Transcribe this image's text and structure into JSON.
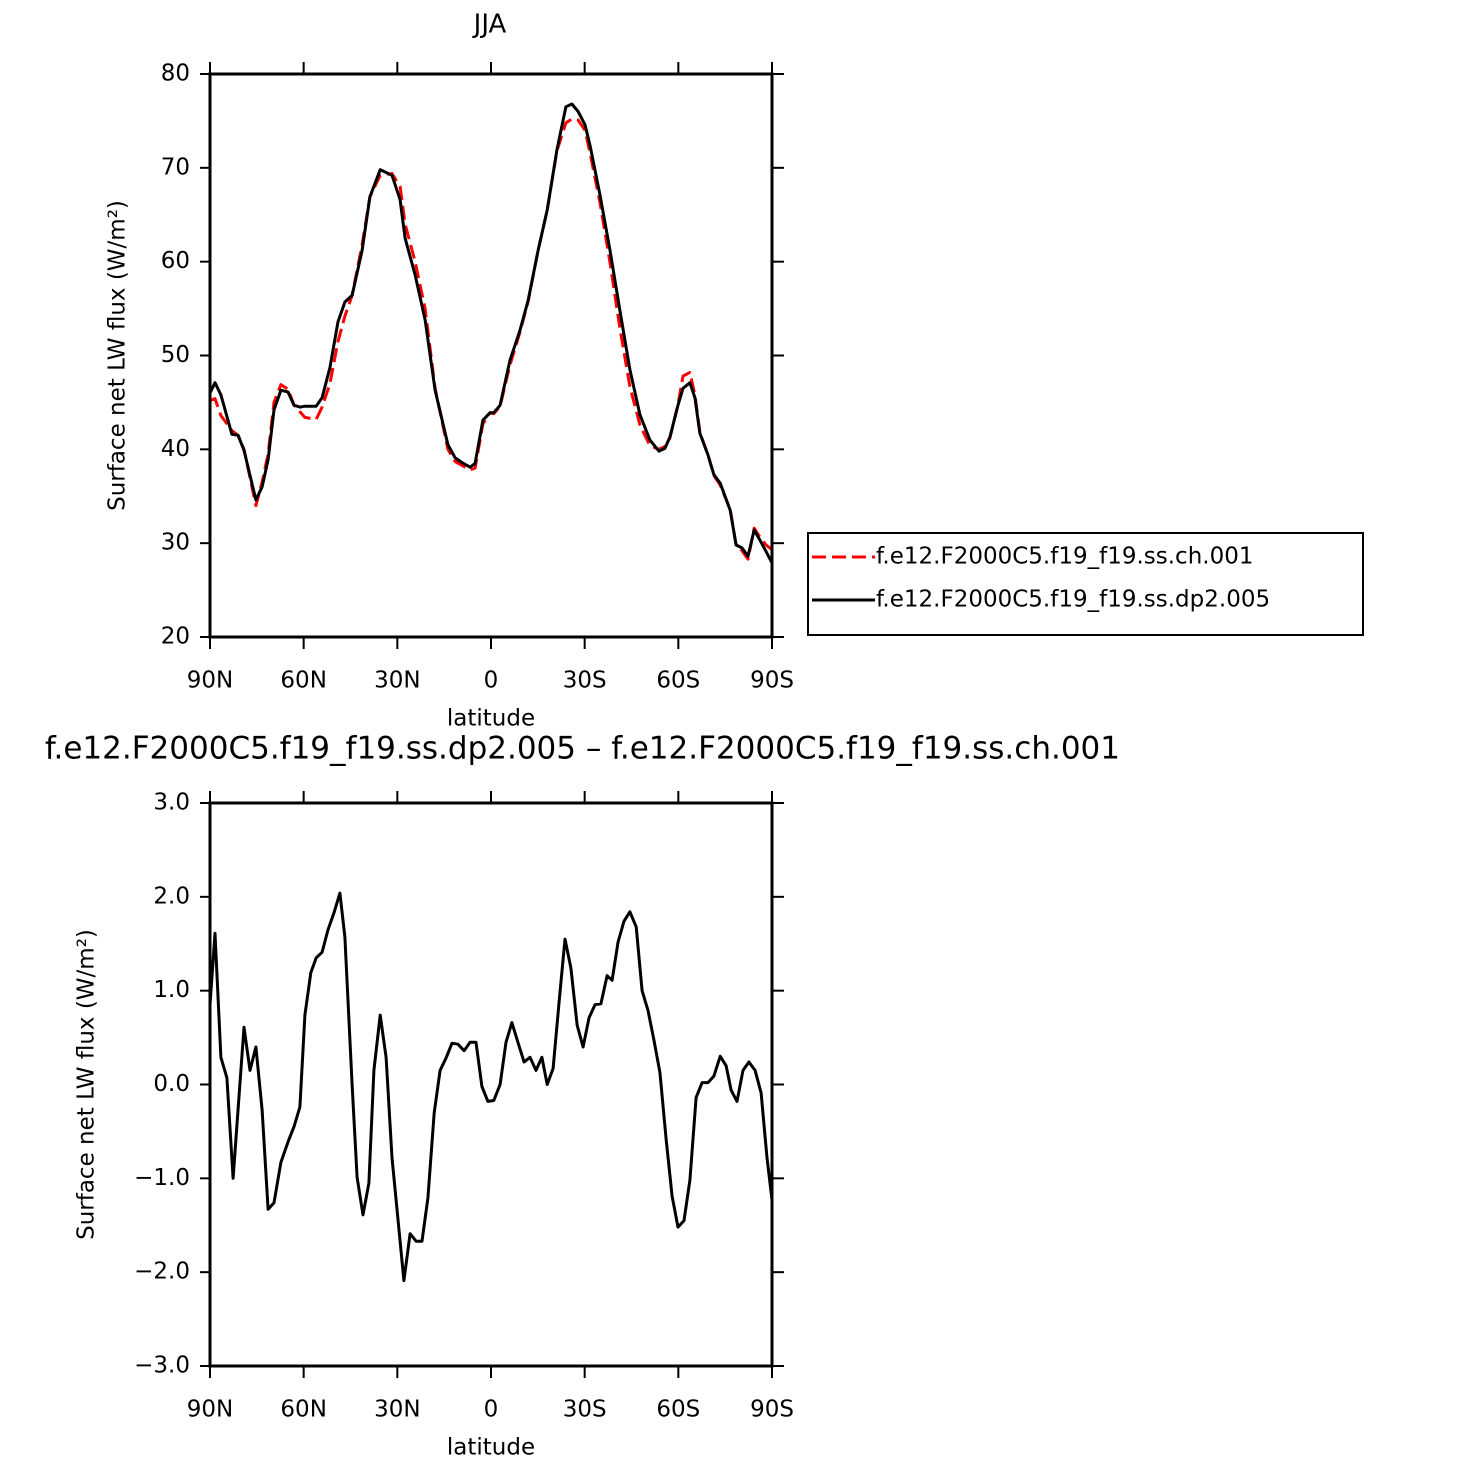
{
  "chart_data": [
    {
      "type": "line",
      "title": "JJA",
      "xlabel": "latitude",
      "ylabel": "Surface net LW flux (W/m²)",
      "x": [
        90,
        88.4,
        86.5,
        83,
        81,
        79.1,
        75.3,
        73.3,
        71.4,
        69.5,
        67.3,
        65,
        63.1,
        61.2,
        59.6,
        56,
        54.1,
        51.6,
        49,
        46.8,
        44.5,
        41.3,
        38.8,
        35.5,
        31.7,
        29.1,
        27.5,
        24.3,
        21.1,
        17.9,
        13.8,
        11.5,
        9.3,
        6.7,
        5.1,
        2.6,
        0.3,
        -0.9,
        -2.9,
        -6.1,
        -9.3,
        -11.9,
        -15.1,
        -18,
        -21.1,
        -24,
        -25.9,
        -27.9,
        -30.1,
        -31.7,
        -34.9,
        -38.1,
        -41.3,
        -44.5,
        -47.7,
        -50.9,
        -53.8,
        -55.7,
        -57.3,
        -59.9,
        -61.5,
        -63.7,
        -65.3,
        -66.9,
        -69.5,
        -71.4,
        -73.4,
        -76.6,
        -78.5,
        -80.4,
        -82.3,
        -84.3,
        -86.2,
        -88.1,
        -90
      ],
      "series": [
        {
          "name": "f.e12.F2000C5.f19_f19.ss.ch.001",
          "color": "#ff0000",
          "dashed": true,
          "values": [
            45.2,
            45.4,
            43.6,
            42.0,
            41.5,
            40.0,
            34.0,
            36.5,
            39.5,
            45.0,
            46.9,
            46.4,
            44.7,
            44.0,
            43.4,
            43.2,
            44.5,
            47.0,
            51.5,
            54.2,
            56.4,
            61.8,
            66.9,
            69.2,
            69.4,
            68.0,
            64.0,
            60.0,
            55.0,
            46.5,
            40.0,
            38.7,
            38.3,
            37.8,
            38.0,
            42.7,
            43.9,
            43.8,
            44.6,
            49.0,
            52.5,
            55.8,
            61.2,
            65.5,
            71.8,
            74.8,
            75.2,
            75.1,
            74.0,
            71.6,
            66.3,
            59.9,
            52.9,
            46.7,
            42.6,
            40.4,
            40.0,
            40.3,
            41.2,
            44.8,
            47.8,
            48.2,
            45.8,
            41.8,
            39.4,
            37.2,
            36.2,
            33.6,
            29.8,
            29.2,
            28.3,
            31.6,
            30.6,
            29.8,
            29.3
          ]
        },
        {
          "name": "f.e12.F2000C5.f19_f19.ss.dp2.005",
          "color": "#000000",
          "dashed": false,
          "values": [
            46.0,
            47.1,
            45.8,
            41.6,
            41.5,
            39.9,
            34.6,
            36.0,
            38.9,
            44.2,
            46.3,
            46.1,
            44.7,
            44.5,
            44.6,
            44.6,
            45.5,
            48.7,
            53.6,
            55.7,
            56.4,
            61.2,
            66.9,
            69.8,
            69.2,
            66.6,
            62.5,
            58.6,
            53.8,
            46.3,
            40.5,
            39.1,
            38.6,
            38.1,
            38.5,
            43.1,
            43.9,
            43.9,
            44.7,
            49.5,
            52.7,
            55.9,
            61.2,
            65.5,
            71.9,
            76.5,
            76.8,
            76.0,
            74.6,
            72.4,
            67.1,
            61.2,
            54.8,
            48.5,
            43.7,
            41.0,
            39.8,
            40.1,
            41.3,
            44.7,
            46.5,
            47.1,
            45.5,
            41.7,
            39.4,
            37.3,
            36.4,
            33.5,
            29.8,
            29.5,
            28.6,
            31.4,
            30.3,
            29.1,
            27.9
          ]
        }
      ],
      "xlim": [
        90,
        -90
      ],
      "ylim": [
        20,
        80
      ],
      "xticks": [
        {
          "value": 90,
          "label": "90N"
        },
        {
          "value": 60,
          "label": "60N"
        },
        {
          "value": 30,
          "label": "30N"
        },
        0,
        {
          "value": -30,
          "label": "30S"
        },
        {
          "value": -60,
          "label": "60S"
        },
        {
          "value": -90,
          "label": "90S"
        }
      ],
      "yticks": [
        20,
        30,
        40,
        50,
        60,
        70,
        80
      ],
      "legend": "right"
    },
    {
      "type": "line",
      "title": "f.e12.F2000C5.f19_f19.ss.dp2.005 – f.e12.F2000C5.f19_f19.ss.ch.001",
      "xlabel": "latitude",
      "ylabel": "Surface net LW flux (W/m²)",
      "x": [
        90,
        88.4,
        86.5,
        84.6,
        82.6,
        79.1,
        77.2,
        75.3,
        73.3,
        71.4,
        69.5,
        67.3,
        65,
        63.1,
        61.2,
        59.6,
        57.7,
        56,
        54.1,
        52.2,
        50.3,
        48.4,
        46.8,
        44.5,
        42.9,
        41,
        39.1,
        37.5,
        35.5,
        33.6,
        31.7,
        29.8,
        27.9,
        25.9,
        24,
        22.1,
        20.2,
        18.2,
        16.3,
        14.4,
        12.5,
        10.6,
        8.6,
        6.7,
        4.8,
        2.9,
        1,
        -0.9,
        -2.9,
        -4.8,
        -6.7,
        -8.6,
        -10.6,
        -12.5,
        -14.4,
        -16.3,
        -18,
        -19.9,
        -21.8,
        -23.7,
        -25.6,
        -27.6,
        -29.5,
        -31.4,
        -33.3,
        -35.2,
        -37.2,
        -38.8,
        -40.7,
        -42.6,
        -44.5,
        -46.5,
        -48.4,
        -50.3,
        -52.2,
        -54.1,
        -56.1,
        -58,
        -59.9,
        -61.8,
        -63.7,
        -65.7,
        -67.6,
        -69.5,
        -71.4,
        -73.4,
        -75.3,
        -76.9,
        -78.8,
        -80.7,
        -82.6,
        -84.6,
        -86.5,
        -88.4,
        -90
      ],
      "values": [
        0.85,
        1.61,
        0.29,
        0.07,
        -1.0,
        0.61,
        0.15,
        0.4,
        -0.27,
        -1.33,
        -1.26,
        -0.83,
        -0.61,
        -0.45,
        -0.24,
        0.74,
        1.19,
        1.35,
        1.41,
        1.65,
        1.83,
        2.04,
        1.57,
        0.0,
        -0.99,
        -1.39,
        -1.05,
        0.15,
        0.74,
        0.29,
        -0.78,
        -1.44,
        -2.09,
        -1.59,
        -1.67,
        -1.67,
        -1.21,
        -0.3,
        0.15,
        0.28,
        0.44,
        0.43,
        0.36,
        0.45,
        0.45,
        -0.02,
        -0.18,
        -0.17,
        0.0,
        0.45,
        0.66,
        0.45,
        0.24,
        0.29,
        0.15,
        0.29,
        0.0,
        0.17,
        0.88,
        1.55,
        1.24,
        0.63,
        0.4,
        0.71,
        0.85,
        0.86,
        1.16,
        1.11,
        1.52,
        1.74,
        1.84,
        1.68,
        1.0,
        0.79,
        0.47,
        0.13,
        -0.59,
        -1.19,
        -1.52,
        -1.45,
        -1.02,
        -0.14,
        0.02,
        0.02,
        0.09,
        0.3,
        0.2,
        -0.06,
        -0.18,
        0.15,
        0.24,
        0.15,
        -0.09,
        -0.78,
        -1.23
      ],
      "color": "#000000",
      "xlim": [
        90,
        -90
      ],
      "ylim": [
        -3,
        3
      ],
      "xticks": [
        {
          "value": 90,
          "label": "90N"
        },
        {
          "value": 60,
          "label": "60N"
        },
        {
          "value": 30,
          "label": "30N"
        },
        0,
        {
          "value": -30,
          "label": "30S"
        },
        {
          "value": -60,
          "label": "60S"
        },
        {
          "value": -90,
          "label": "90S"
        }
      ],
      "yticks": [
        {
          "value": -3,
          "label": "−3.0"
        },
        {
          "value": -2,
          "label": "−2.0"
        },
        {
          "value": -1,
          "label": "−1.0"
        },
        {
          "value": 0,
          "label": "0.0"
        },
        {
          "value": 1,
          "label": "1.0"
        },
        {
          "value": 2,
          "label": "2.0"
        },
        {
          "value": 3,
          "label": "3.0"
        }
      ]
    }
  ]
}
